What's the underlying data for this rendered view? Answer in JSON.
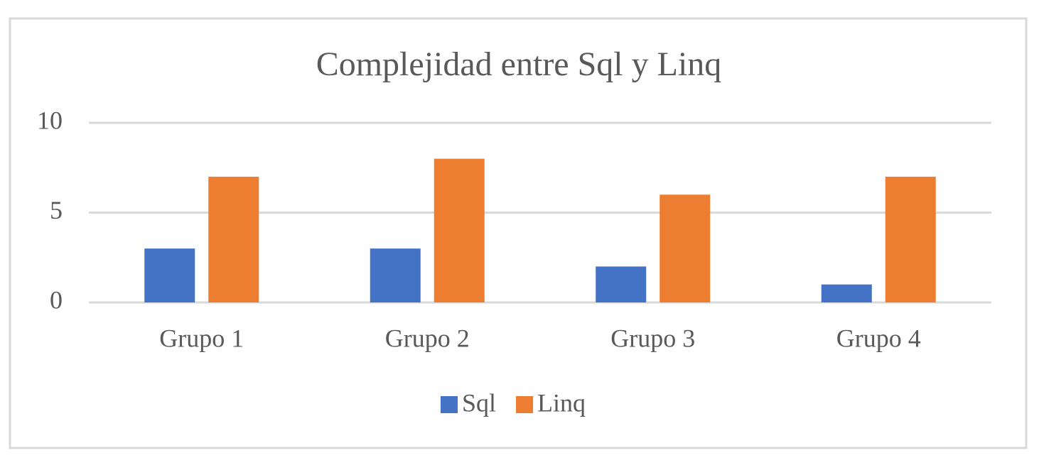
{
  "chart_data": {
    "type": "bar",
    "title": "Complejidad entre Sql y Linq",
    "categories": [
      "Grupo 1",
      "Grupo 2",
      "Grupo 3",
      "Grupo 4"
    ],
    "series": [
      {
        "name": "Sql",
        "color": "#4472c4",
        "values": [
          3,
          3,
          2,
          1
        ]
      },
      {
        "name": "Linq",
        "color": "#ed7d31",
        "values": [
          7,
          8,
          6,
          7
        ]
      }
    ],
    "ylim": [
      0,
      10
    ],
    "yticks": [
      0,
      5,
      10
    ],
    "grid": true,
    "legend": "bottom"
  }
}
